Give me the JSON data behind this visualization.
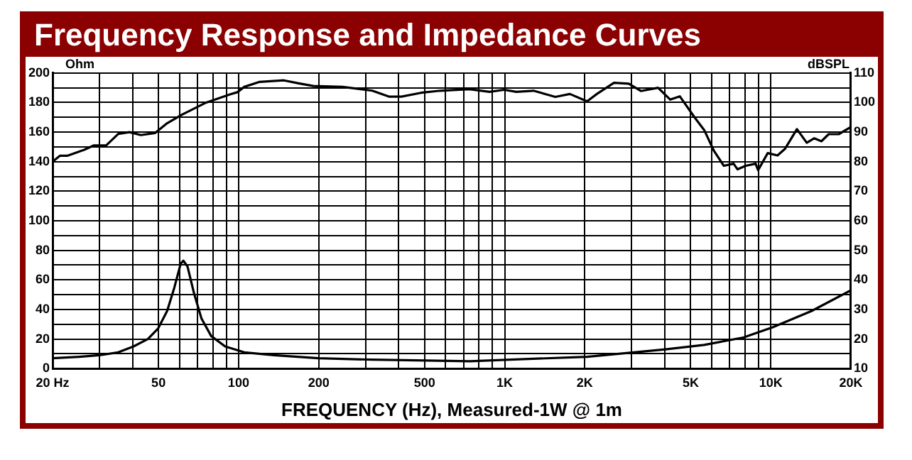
{
  "chart_data": {
    "type": "line",
    "title": "Frequency Response and Impedance Curves",
    "xlabel": "FREQUENCY (Hz), Measured-1W @ 1m",
    "ylabel": "Ohm",
    "y2label": "dBSPL",
    "log": "x",
    "grid": true,
    "legend": false,
    "marker": "none",
    "line_style": "solid",
    "xlim": [
      20,
      20000
    ],
    "xticks": [
      {
        "value": 20,
        "label": "20 Hz"
      },
      {
        "value": 30,
        "label": null
      },
      {
        "value": 40,
        "label": null
      },
      50,
      {
        "value": 60,
        "label": null
      },
      {
        "value": 70,
        "label": null
      },
      {
        "value": 80,
        "label": null
      },
      {
        "value": 90,
        "label": null
      },
      100,
      200,
      {
        "value": 300,
        "label": null
      },
      {
        "value": 400,
        "label": null
      },
      500,
      {
        "value": 600,
        "label": null
      },
      {
        "value": 700,
        "label": null
      },
      {
        "value": 800,
        "label": null
      },
      {
        "value": 900,
        "label": null
      },
      {
        "value": 1000,
        "label": "1K"
      },
      {
        "value": 2000,
        "label": "2K"
      },
      {
        "value": 3000,
        "label": null
      },
      {
        "value": 4000,
        "label": null
      },
      {
        "value": 5000,
        "label": "5K"
      },
      {
        "value": 6000,
        "label": null
      },
      {
        "value": 7000,
        "label": null
      },
      {
        "value": 8000,
        "label": null
      },
      {
        "value": 9000,
        "label": null
      },
      {
        "value": 10000,
        "label": "10K"
      },
      {
        "value": 20000,
        "label": "20K"
      }
    ],
    "ylim": [
      0,
      200
    ],
    "yticks": [
      0,
      {
        "value": 10,
        "label": null
      },
      20,
      {
        "value": 30,
        "label": null
      },
      40,
      {
        "value": 50,
        "label": null
      },
      60,
      {
        "value": 70,
        "label": null
      },
      80,
      {
        "value": 90,
        "label": null
      },
      100,
      {
        "value": 110,
        "label": null
      },
      120,
      {
        "value": 130,
        "label": null
      },
      140,
      {
        "value": 150,
        "label": null
      },
      160,
      {
        "value": 170,
        "label": null
      },
      180,
      {
        "value": 190,
        "label": null
      },
      200
    ],
    "y2lim": [
      10,
      110
    ],
    "y2ticks": [
      10,
      20,
      30,
      40,
      50,
      60,
      70,
      80,
      90,
      100,
      110
    ],
    "series": [
      {
        "color": "#000000",
        "axis": "y2",
        "x": [
          20,
          21.3,
          22.7,
          26.3,
          28.6,
          31.8,
          35.3,
          38.9,
          42.9,
          48.6,
          53.9,
          61,
          75.6,
          93.2,
          99,
          105,
          120,
          148,
          168,
          191,
          246,
          318,
          367,
          409,
          485,
          573,
          736,
          877,
          995,
          1107,
          1283,
          1550,
          1758,
          2040,
          2220,
          2575,
          2925,
          3250,
          3770,
          4190,
          4550,
          5170,
          5620,
          6120,
          6660,
          7250,
          7500,
          8050,
          8770,
          8960,
          9740,
          10600,
          11300,
          12540,
          13650,
          14550,
          15500,
          16500,
          18000,
          20000
        ],
        "values": [
          80,
          82,
          82,
          84,
          85.5,
          85.5,
          89.4,
          90,
          89,
          89.7,
          93,
          95.8,
          100,
          102.8,
          103.5,
          105.3,
          107,
          107.5,
          106.5,
          105.6,
          105.3,
          104,
          102,
          102,
          103.3,
          104,
          104.5,
          103.6,
          104.3,
          103.6,
          104,
          101.9,
          102.9,
          100.4,
          102.9,
          106.7,
          106.4,
          103.9,
          105,
          101,
          102.1,
          95,
          90.7,
          83.6,
          78.6,
          79.3,
          77.4,
          78.6,
          79.3,
          77.1,
          82.9,
          82.1,
          84.3,
          91,
          86.4,
          87.9,
          86.9,
          89.3,
          89.3,
          91.7
        ]
      },
      {
        "color": "#000000",
        "x": [
          20,
          25.2,
          29.9,
          35.3,
          40.3,
          45.6,
          49.8,
          53.9,
          57.4,
          60.6,
          62,
          64.3,
          68,
          72.5,
          78.9,
          89,
          105,
          136,
          200,
          318,
          740,
          2040,
          4020,
          5620,
          7880,
          10170,
          14250,
          20000
        ],
        "values": [
          7,
          8,
          9,
          11,
          15,
          20,
          27,
          39,
          55,
          71,
          73,
          69,
          51,
          34,
          22,
          15,
          11,
          9,
          7,
          6,
          5,
          8,
          13,
          16,
          21,
          28,
          39,
          53
        ]
      }
    ]
  }
}
